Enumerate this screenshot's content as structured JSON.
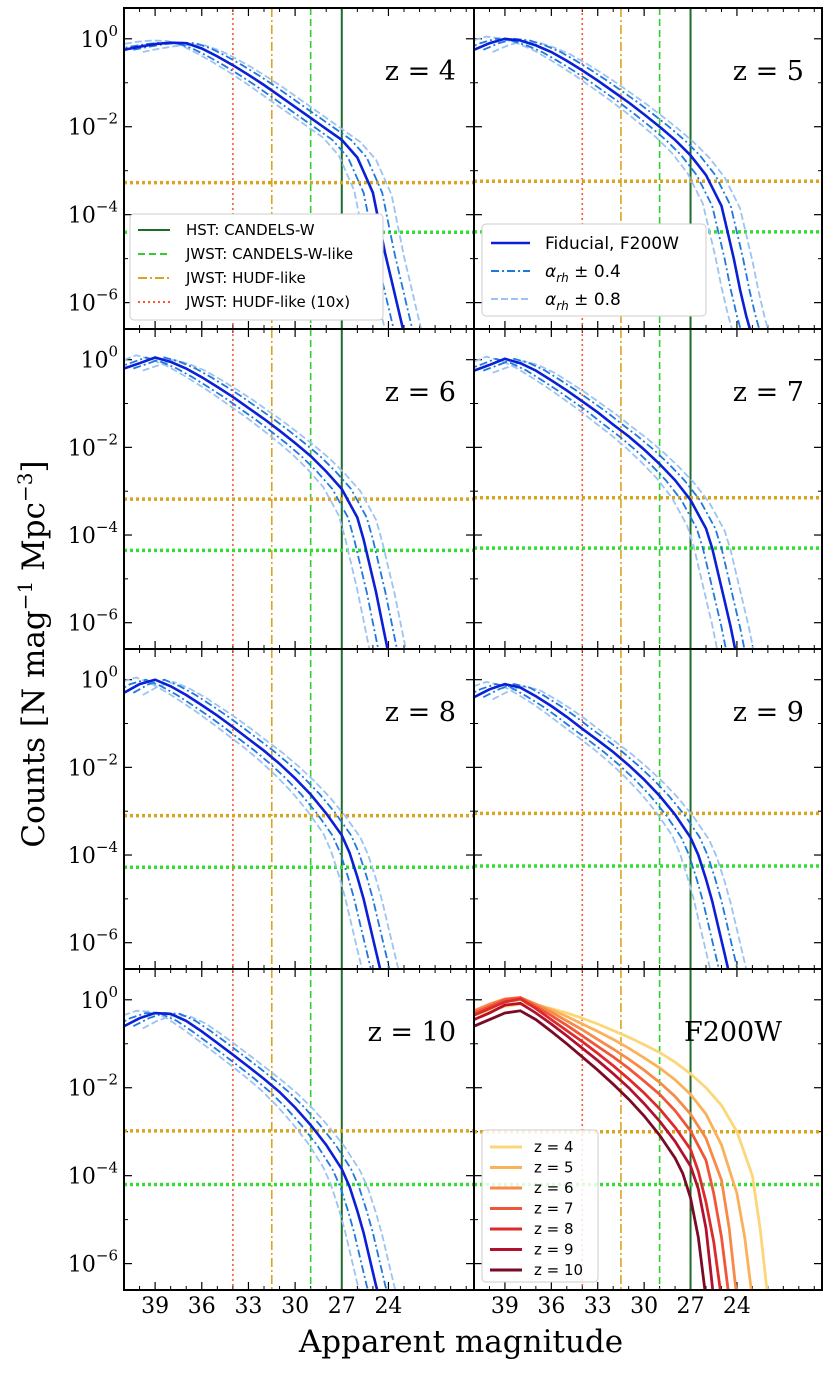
{
  "chart_data": {
    "type": "line",
    "x_axis": {
      "label": "Apparent magnitude",
      "lim": [
        41,
        18.5
      ],
      "ticks": [
        39,
        36,
        33,
        30,
        27,
        24
      ],
      "tick_labels": [
        "39",
        "36",
        "33",
        "30",
        "27",
        "24"
      ],
      "inverted": true
    },
    "y_axis": {
      "label_main": "Counts  [N mag",
      "label_sup1": "−1",
      "label_mid": " Mpc",
      "label_sup2": "−3",
      "label_end": "]",
      "scale": "log",
      "lim_log10": [
        -6.6,
        0.7
      ],
      "ticks_log10": [
        0,
        -2,
        -4,
        -6
      ],
      "tick_bases": [
        "10",
        "10",
        "10",
        "10"
      ],
      "tick_exponents": [
        "0",
        "−2",
        "−4",
        "−6"
      ]
    },
    "limits": {
      "hst_candels_w": 27,
      "jwst_candels_w_like": 29,
      "jwst_hudf_like": 31.5,
      "jwst_hudf_like_10x": 34
    },
    "colors": {
      "hst": "#1e6b2a",
      "candels_like": "#33cc33",
      "hudf_like": "#d9a520",
      "hudf_10x": "#ff5533",
      "fiducial": "#0a1fd6",
      "alpha04": "#1f78e0",
      "alpha08": "#9cc4f2",
      "hline_gold": "#d9a520",
      "hline_green": "#33dd33"
    },
    "panels": [
      {
        "label": "z = 4",
        "hline_gold": -3.27,
        "hline_green": -4.4,
        "fiducial": {
          "x": [
            41,
            40,
            39,
            38,
            37,
            36,
            35,
            34,
            33,
            32,
            31,
            30,
            29,
            28,
            27,
            26,
            25,
            24.6,
            24.2,
            23.8,
            23.4,
            23.0
          ],
          "y": [
            -0.25,
            -0.18,
            -0.12,
            -0.09,
            -0.1,
            -0.22,
            -0.4,
            -0.6,
            -0.82,
            -1.05,
            -1.3,
            -1.55,
            -1.8,
            -2.05,
            -2.3,
            -2.7,
            -3.5,
            -4.2,
            -4.9,
            -5.5,
            -6.1,
            -6.7
          ]
        }
      },
      {
        "label": "z = 5",
        "hline_gold": -3.24,
        "hline_green": -4.39,
        "fiducial": {
          "x": [
            41,
            40,
            39,
            38,
            37,
            36,
            35,
            34,
            33,
            32,
            31,
            30,
            29,
            28,
            27,
            26,
            25,
            24.6,
            24.2,
            23.8,
            23.4,
            23.0
          ],
          "y": [
            -0.25,
            -0.1,
            0.0,
            -0.04,
            -0.15,
            -0.3,
            -0.5,
            -0.72,
            -0.95,
            -1.2,
            -1.45,
            -1.72,
            -2.0,
            -2.3,
            -2.65,
            -3.1,
            -3.8,
            -4.4,
            -5.0,
            -5.7,
            -6.3,
            -6.8
          ]
        }
      },
      {
        "label": "z = 6",
        "hline_gold": -3.18,
        "hline_green": -4.35,
        "fiducial": {
          "x": [
            41,
            40,
            39,
            38,
            37,
            36,
            35,
            34,
            33,
            32,
            31,
            30,
            29,
            28,
            27,
            26,
            25.6,
            25.2,
            24.8,
            24.4,
            24.0
          ],
          "y": [
            -0.2,
            -0.08,
            0.05,
            -0.05,
            -0.2,
            -0.4,
            -0.62,
            -0.85,
            -1.1,
            -1.35,
            -1.62,
            -1.9,
            -2.2,
            -2.55,
            -2.95,
            -3.6,
            -4.1,
            -4.7,
            -5.3,
            -6.0,
            -6.7
          ]
        }
      },
      {
        "label": "z = 7",
        "hline_gold": -3.15,
        "hline_green": -4.3,
        "fiducial": {
          "x": [
            41,
            40,
            39,
            38,
            37,
            36,
            35,
            34,
            33,
            32,
            31,
            30,
            29,
            28,
            27,
            26,
            25.6,
            25.2,
            24.8,
            24.4,
            24.0
          ],
          "y": [
            -0.25,
            -0.12,
            0.02,
            -0.08,
            -0.25,
            -0.47,
            -0.7,
            -0.95,
            -1.2,
            -1.48,
            -1.75,
            -2.05,
            -2.38,
            -2.75,
            -3.2,
            -3.85,
            -4.3,
            -4.9,
            -5.5,
            -6.1,
            -6.8
          ]
        }
      },
      {
        "label": "z = 8",
        "hline_gold": -3.1,
        "hline_green": -4.28,
        "fiducial": {
          "x": [
            41,
            40,
            39,
            38,
            37,
            36,
            35,
            34,
            33,
            32,
            31,
            30,
            29,
            28,
            27,
            26.5,
            26,
            25.6,
            25.2,
            24.8,
            24.4
          ],
          "y": [
            -0.3,
            -0.1,
            0.0,
            -0.15,
            -0.35,
            -0.58,
            -0.82,
            -1.08,
            -1.35,
            -1.62,
            -1.92,
            -2.25,
            -2.62,
            -3.05,
            -3.55,
            -3.95,
            -4.5,
            -5.0,
            -5.6,
            -6.2,
            -6.8
          ]
        }
      },
      {
        "label": "z = 9",
        "hline_gold": -3.05,
        "hline_green": -4.25,
        "fiducial": {
          "x": [
            41,
            40,
            39,
            38,
            37,
            36,
            35,
            34,
            33,
            32,
            31,
            30,
            29,
            28,
            27,
            26.5,
            26,
            25.6,
            25.2,
            24.8,
            24.4
          ],
          "y": [
            -0.4,
            -0.22,
            -0.1,
            -0.18,
            -0.38,
            -0.6,
            -0.85,
            -1.12,
            -1.38,
            -1.65,
            -1.95,
            -2.28,
            -2.65,
            -3.08,
            -3.6,
            -4.0,
            -4.55,
            -5.05,
            -5.65,
            -6.25,
            -6.85
          ]
        }
      },
      {
        "label": "z = 10",
        "hline_gold": -2.98,
        "hline_green": -4.2,
        "fiducial": {
          "x": [
            41,
            40,
            39,
            38,
            37,
            36,
            35,
            34,
            33,
            32,
            31,
            30,
            29,
            28,
            27,
            26.5,
            26,
            25.6,
            25.2,
            24.8,
            24.4
          ],
          "y": [
            -0.6,
            -0.42,
            -0.3,
            -0.32,
            -0.48,
            -0.72,
            -0.98,
            -1.25,
            -1.52,
            -1.8,
            -2.1,
            -2.45,
            -2.85,
            -3.3,
            -3.85,
            -4.25,
            -4.8,
            -5.3,
            -5.9,
            -6.5,
            -7.0
          ]
        }
      }
    ],
    "summary_panel": {
      "label": "F200W",
      "hline_gold": -3.0,
      "hline_green": -4.2,
      "vlines": {
        "hst_candels_w": 27,
        "jwst_candels_w_like": 29,
        "jwst_hudf_like": 31.5,
        "jwst_hudf_like_10x": 34
      },
      "series": [
        {
          "name": "z = 4",
          "color": "#fcd77a",
          "x": [
            41,
            40,
            39,
            38,
            37,
            36,
            35,
            34,
            33,
            32,
            31,
            30,
            29,
            28,
            27,
            26,
            25,
            24,
            23,
            22.5,
            22.0
          ],
          "y": [
            -0.35,
            -0.25,
            -0.15,
            -0.1,
            -0.12,
            -0.2,
            -0.3,
            -0.42,
            -0.55,
            -0.7,
            -0.85,
            -1.02,
            -1.2,
            -1.42,
            -1.68,
            -2.0,
            -2.4,
            -3.0,
            -4.0,
            -5.2,
            -6.8
          ]
        },
        {
          "name": "z = 5",
          "color": "#f9b25a",
          "x": [
            41,
            40,
            39,
            38,
            37,
            36,
            35,
            34,
            33,
            32,
            31,
            30,
            29,
            28,
            27,
            26,
            25,
            24,
            23.5,
            23.0
          ],
          "y": [
            -0.3,
            -0.15,
            -0.05,
            0.0,
            -0.1,
            -0.22,
            -0.38,
            -0.55,
            -0.72,
            -0.9,
            -1.1,
            -1.32,
            -1.55,
            -1.82,
            -2.15,
            -2.6,
            -3.3,
            -4.4,
            -5.4,
            -6.8
          ]
        },
        {
          "name": "z = 6",
          "color": "#f88a48",
          "x": [
            41,
            40,
            39,
            38,
            37,
            36,
            35,
            34,
            33,
            32,
            31,
            30,
            29,
            28,
            27,
            26,
            25,
            24.5,
            24.0
          ],
          "y": [
            -0.25,
            -0.1,
            0.02,
            0.05,
            -0.1,
            -0.28,
            -0.48,
            -0.68,
            -0.9,
            -1.12,
            -1.35,
            -1.6,
            -1.88,
            -2.2,
            -2.6,
            -3.15,
            -4.1,
            -5.2,
            -6.8
          ]
        },
        {
          "name": "z = 7",
          "color": "#f0553a",
          "x": [
            41,
            40,
            39,
            38,
            37,
            36,
            35,
            34,
            33,
            32,
            31,
            30,
            29,
            28,
            27,
            26,
            25.5,
            25.0,
            24.5
          ],
          "y": [
            -0.3,
            -0.15,
            0.0,
            0.05,
            -0.15,
            -0.36,
            -0.58,
            -0.82,
            -1.06,
            -1.3,
            -1.56,
            -1.85,
            -2.15,
            -2.52,
            -2.98,
            -3.65,
            -4.4,
            -5.4,
            -6.8
          ]
        },
        {
          "name": "z = 8",
          "color": "#dd2a2a",
          "x": [
            41,
            40,
            39,
            38,
            37,
            36,
            35,
            34,
            33,
            32,
            31,
            30,
            29,
            28,
            27,
            26.5,
            26,
            25.5,
            25.0
          ],
          "y": [
            -0.35,
            -0.2,
            -0.05,
            0.02,
            -0.2,
            -0.45,
            -0.7,
            -0.95,
            -1.22,
            -1.5,
            -1.8,
            -2.12,
            -2.48,
            -2.9,
            -3.4,
            -3.9,
            -4.6,
            -5.5,
            -6.8
          ]
        },
        {
          "name": "z = 9",
          "color": "#b2102f",
          "x": [
            41,
            40,
            39,
            38,
            37,
            36,
            35,
            34,
            33,
            32,
            31,
            30,
            29,
            28,
            27,
            26.5,
            26,
            25.5
          ],
          "y": [
            -0.45,
            -0.3,
            -0.12,
            -0.08,
            -0.3,
            -0.55,
            -0.82,
            -1.1,
            -1.38,
            -1.68,
            -2.0,
            -2.36,
            -2.76,
            -3.22,
            -3.78,
            -4.3,
            -5.2,
            -6.8
          ]
        },
        {
          "name": "z = 10",
          "color": "#7a0a25",
          "x": [
            41,
            40,
            39,
            38,
            37,
            36,
            35,
            34,
            33,
            32,
            31,
            30,
            29,
            28,
            27.5,
            27,
            26.5,
            26.0
          ],
          "y": [
            -0.6,
            -0.45,
            -0.3,
            -0.25,
            -0.45,
            -0.72,
            -1.0,
            -1.3,
            -1.6,
            -1.92,
            -2.26,
            -2.64,
            -3.08,
            -3.6,
            -3.95,
            -4.5,
            -5.4,
            -6.8
          ]
        }
      ]
    },
    "legends": {
      "limits": [
        {
          "label": "HST: CANDELS-W",
          "key": "hst"
        },
        {
          "label": "JWST: CANDELS-W-like",
          "key": "candels_like"
        },
        {
          "label": "JWST: HUDF-like",
          "key": "hudf_like"
        },
        {
          "label": "JWST: HUDF-like (10x)",
          "key": "hudf_10x"
        }
      ],
      "models": [
        {
          "label": "Fiducial, F200W",
          "key": "fiducial"
        },
        {
          "label_pre": "α",
          "label_sub": "rh",
          "label_post": " ± 0.4",
          "key": "alpha04"
        },
        {
          "label_pre": "α",
          "label_sub": "rh",
          "label_post": " ± 0.8",
          "key": "alpha08"
        }
      ]
    }
  }
}
